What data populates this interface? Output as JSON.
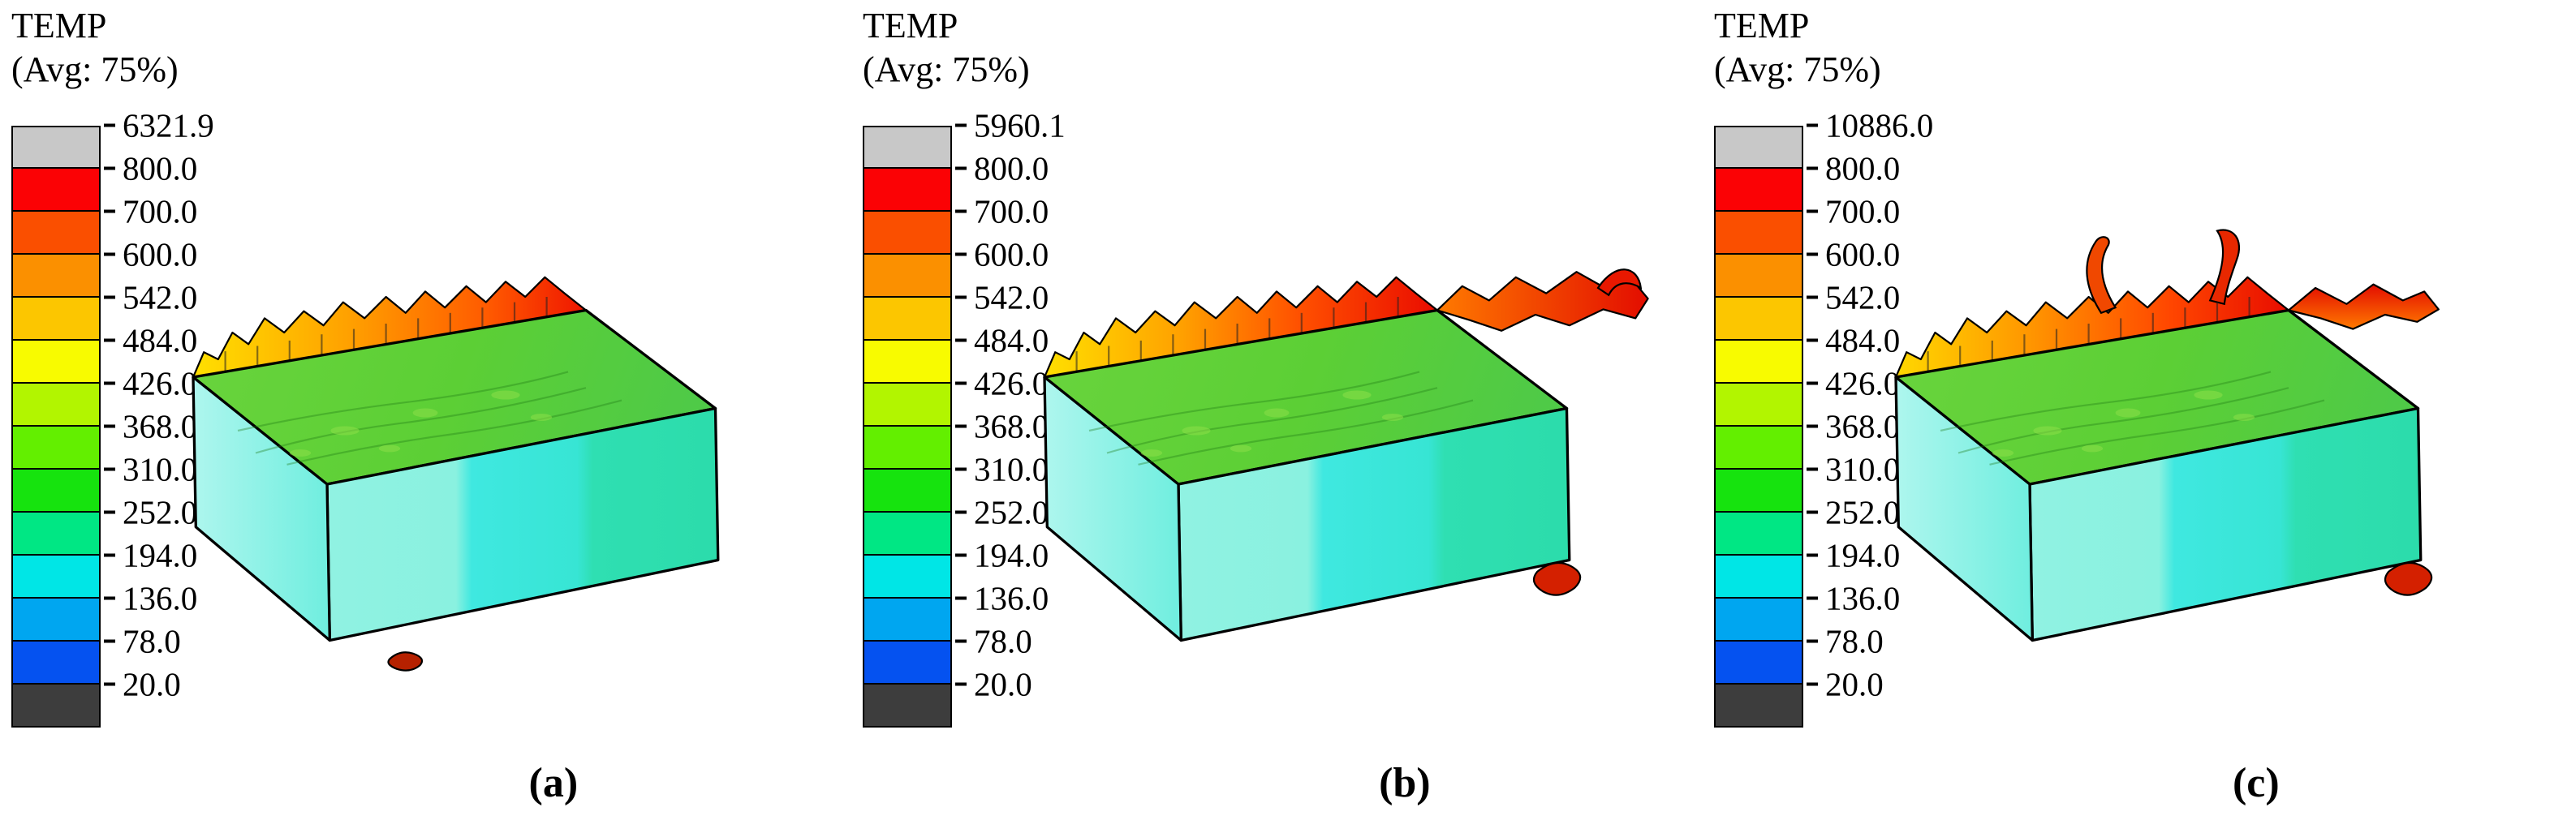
{
  "figure": {
    "background": "#ffffff"
  },
  "colorbar": {
    "band_colors": [
      "#c8c8c8",
      "#fb0205",
      "#fa4f00",
      "#fb9000",
      "#fcc600",
      "#f8fb00",
      "#b2f500",
      "#63ef00",
      "#16e30e",
      "#00e784",
      "#00e6e6",
      "#00a6f0",
      "#0552f0",
      "#3d3d3d"
    ]
  },
  "panels": [
    {
      "caption": "(a)",
      "legend": {
        "title": "TEMP",
        "subtitle": "(Avg: 75%)",
        "max_value": "6321.9",
        "tick_labels": [
          "6321.9",
          "800.0",
          "700.0",
          "600.0",
          "542.0",
          "484.0",
          "426.0",
          "368.0",
          "310.0",
          "252.0",
          "194.0",
          "136.0",
          "78.0",
          "20.0"
        ]
      }
    },
    {
      "caption": "(b)",
      "legend": {
        "title": "TEMP",
        "subtitle": "(Avg: 75%)",
        "max_value": "5960.1",
        "tick_labels": [
          "5960.1",
          "800.0",
          "700.0",
          "600.0",
          "542.0",
          "484.0",
          "426.0",
          "368.0",
          "310.0",
          "252.0",
          "194.0",
          "136.0",
          "78.0",
          "20.0"
        ]
      }
    },
    {
      "caption": "(c)",
      "legend": {
        "title": "TEMP",
        "subtitle": "(Avg: 75%)",
        "max_value": "10886.0",
        "tick_labels": [
          "10886.0",
          "800.0",
          "700.0",
          "600.0",
          "542.0",
          "484.0",
          "426.0",
          "368.0",
          "310.0",
          "252.0",
          "194.0",
          "136.0",
          "78.0",
          "20.0"
        ]
      }
    }
  ],
  "chart_data": [
    {
      "type": "heatmap",
      "panel": "(a)",
      "title": "TEMP",
      "subtitle": "(Avg: 75%)",
      "legend_levels": [
        20.0,
        78.0,
        136.0,
        194.0,
        252.0,
        310.0,
        368.0,
        426.0,
        484.0,
        542.0,
        600.0,
        700.0,
        800.0
      ],
      "max_value": 6321.9,
      "legend_position": "left",
      "description": "FE simulation temperature contour of machined workpiece with chips; bulk 194-310, top surface 310-426, chips 542->800+"
    },
    {
      "type": "heatmap",
      "panel": "(b)",
      "title": "TEMP",
      "subtitle": "(Avg: 75%)",
      "legend_levels": [
        20.0,
        78.0,
        136.0,
        194.0,
        252.0,
        310.0,
        368.0,
        426.0,
        484.0,
        542.0,
        600.0,
        700.0,
        800.0
      ],
      "max_value": 5960.1,
      "legend_position": "left",
      "description": "Same workpiece; red-hot chips extend to the right rear edge and right front corner"
    },
    {
      "type": "heatmap",
      "panel": "(c)",
      "title": "TEMP",
      "subtitle": "(Avg: 75%)",
      "legend_levels": [
        20.0,
        78.0,
        136.0,
        194.0,
        252.0,
        310.0,
        368.0,
        426.0,
        484.0,
        542.0,
        600.0,
        700.0,
        800.0
      ],
      "max_value": 10886.0,
      "legend_position": "left",
      "description": "Same workpiece; two tall curled red-hot chips rise from the rear edge, red mass at right front corner"
    }
  ]
}
